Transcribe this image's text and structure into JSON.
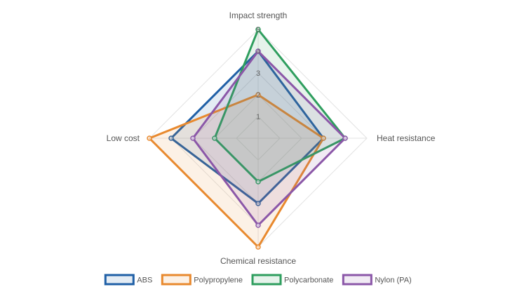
{
  "chart_data": {
    "type": "radar",
    "axes": [
      "Impact strength",
      "Heat resistance",
      "Chemical resistance",
      "Low cost"
    ],
    "scale": {
      "min": 0,
      "max": 5,
      "ticks": [
        "1",
        "2",
        "3",
        "4",
        "5"
      ]
    },
    "grid": true,
    "legend_position": "bottom",
    "series": [
      {
        "name": "ABS",
        "values": [
          4,
          3,
          3,
          4
        ],
        "color": "#1f5fa6"
      },
      {
        "name": "Polypropylene",
        "values": [
          2,
          3,
          5,
          5
        ],
        "color": "#e8892e"
      },
      {
        "name": "Polycarbonate",
        "values": [
          5,
          4,
          2,
          2
        ],
        "color": "#2e9e5e"
      },
      {
        "name": "Nylon (PA)",
        "values": [
          4,
          4,
          4,
          3
        ],
        "color": "#8b57a8"
      }
    ]
  }
}
